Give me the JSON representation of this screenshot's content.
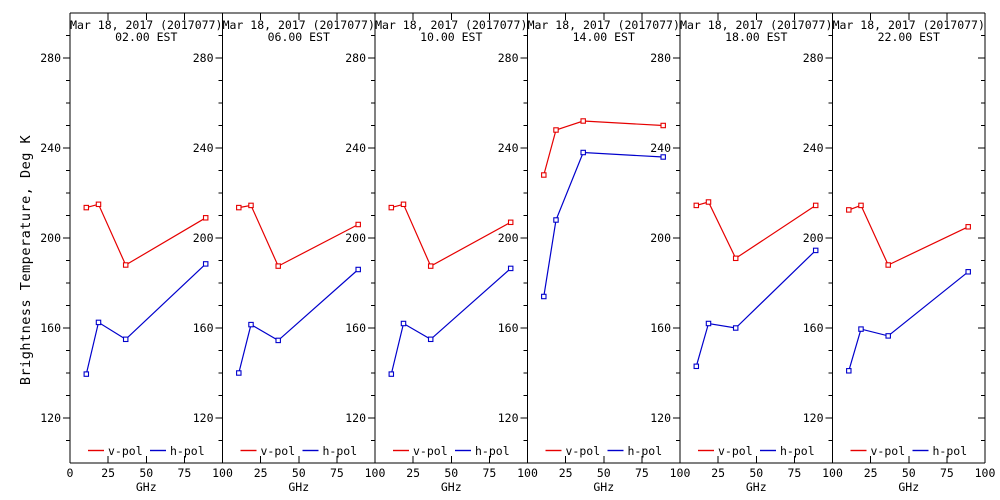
{
  "colors": {
    "v_pol": "#e60000",
    "h_pol": "#0000cc",
    "axis": "#000000",
    "text": "#000000",
    "background": "#ffffff"
  },
  "chart_data": {
    "type": "line",
    "ylabel": "Brightness Temperature, Deg K",
    "xlabel": "GHz",
    "xlim": [
      0,
      100
    ],
    "ylim": [
      100,
      300
    ],
    "xticks": [
      0,
      25,
      50,
      75,
      100
    ],
    "yticks": [
      120,
      160,
      200,
      240,
      280
    ],
    "y_minor_step": 10,
    "grid": false,
    "legend_position": "bottom-inside",
    "legend": [
      {
        "name": "v-pol",
        "color_key": "v_pol"
      },
      {
        "name": "h-pol",
        "color_key": "h_pol"
      }
    ],
    "x_frequencies_ghz": [
      10.7,
      18.7,
      36.5,
      89
    ],
    "panels": [
      {
        "title": "Mar 18, 2017 (2017077)",
        "subtitle": "02.00 EST",
        "series": [
          {
            "name": "v-pol",
            "values": [
              213.5,
              215.0,
              188.0,
              209.0
            ]
          },
          {
            "name": "h-pol",
            "values": [
              139.5,
              162.5,
              155.0,
              188.5
            ]
          }
        ]
      },
      {
        "title": "Mar 18, 2017 (2017077)",
        "subtitle": "06.00 EST",
        "series": [
          {
            "name": "v-pol",
            "values": [
              213.5,
              214.5,
              187.5,
              206.0
            ]
          },
          {
            "name": "h-pol",
            "values": [
              140.0,
              161.5,
              154.5,
              186.0
            ]
          }
        ]
      },
      {
        "title": "Mar 18, 2017 (2017077)",
        "subtitle": "10.00 EST",
        "series": [
          {
            "name": "v-pol",
            "values": [
              213.5,
              215.0,
              187.5,
              207.0
            ]
          },
          {
            "name": "h-pol",
            "values": [
              139.5,
              162.0,
              155.0,
              186.5
            ]
          }
        ]
      },
      {
        "title": "Mar 18, 2017 (2017077)",
        "subtitle": "14.00 EST",
        "series": [
          {
            "name": "v-pol",
            "values": [
              228.0,
              248.0,
              252.0,
              250.0
            ]
          },
          {
            "name": "h-pol",
            "values": [
              174.0,
              208.0,
              238.0,
              236.0
            ]
          }
        ]
      },
      {
        "title": "Mar 18, 2017 (2017077)",
        "subtitle": "18.00 EST",
        "series": [
          {
            "name": "v-pol",
            "values": [
              214.5,
              216.0,
              191.0,
              214.5
            ]
          },
          {
            "name": "h-pol",
            "values": [
              143.0,
              162.0,
              160.0,
              194.5
            ]
          }
        ]
      },
      {
        "title": "Mar 18, 2017 (2017077)",
        "subtitle": "22.00 EST",
        "series": [
          {
            "name": "v-pol",
            "values": [
              212.5,
              214.5,
              188.0,
              205.0
            ]
          },
          {
            "name": "h-pol",
            "values": [
              141.0,
              159.5,
              156.5,
              185.0
            ]
          }
        ]
      }
    ]
  }
}
